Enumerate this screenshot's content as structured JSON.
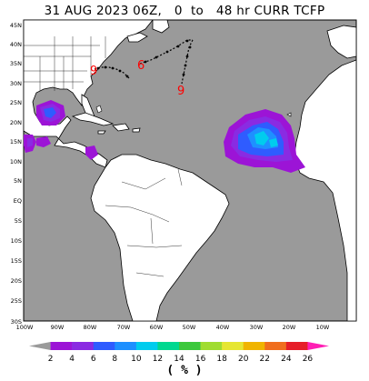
{
  "title": "31 AUG 2023 06Z,   0  to   48 hr CURR TCFP",
  "lat_labels": [
    "45N",
    "40N",
    "35N",
    "30N",
    "25N",
    "20N",
    "15N",
    "10N",
    "5N",
    "EQ",
    "5S",
    "10S",
    "15S",
    "20S",
    "25S",
    "30S"
  ],
  "lon_labels": [
    "100W",
    "90W",
    "80W",
    "70W",
    "60W",
    "50W",
    "40W",
    "30W",
    "20W",
    "10W"
  ],
  "colorbar": {
    "ticks": [
      "2",
      "4",
      "6",
      "8",
      "10",
      "12",
      "14",
      "16",
      "18",
      "20",
      "22",
      "24",
      "26"
    ],
    "colors": [
      "#9a9a9a",
      "#9c14d6",
      "#8a2be2",
      "#2f5cff",
      "#1e90ff",
      "#00ccee",
      "#00d890",
      "#3cc83c",
      "#a0dc30",
      "#e6e632",
      "#f0b400",
      "#f06e1e",
      "#e61e28",
      "#ff1eb4"
    ],
    "unit": "( % )"
  },
  "storm_markers": [
    {
      "symbol": "9",
      "lat": 35,
      "lon": -77
    },
    {
      "symbol": "6",
      "lat": 36,
      "lon": -59
    },
    {
      "symbol": "9",
      "lat": 29,
      "lon": -52
    }
  ],
  "colors": {
    "ocean": "#9a9a9a",
    "land": "#ffffff",
    "border": "#000000",
    "track": "#000000",
    "marker": "#ff0000"
  }
}
